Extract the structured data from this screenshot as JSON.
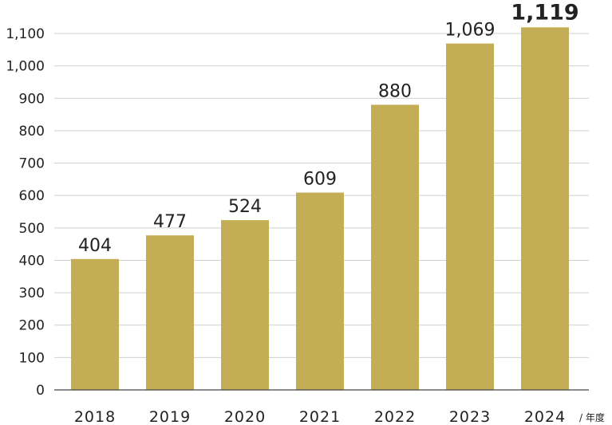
{
  "chart_data": {
    "type": "bar",
    "categories": [
      "2018",
      "2019",
      "2020",
      "2021",
      "2022",
      "2023",
      "2024"
    ],
    "values": [
      404,
      477,
      524,
      609,
      880,
      1069,
      1119
    ],
    "data_labels": [
      "404",
      "477",
      "524",
      "609",
      "880",
      "1,069",
      "1,119"
    ],
    "y_ticks": [
      "0",
      "100",
      "200",
      "300",
      "400",
      "500",
      "600",
      "700",
      "800",
      "900",
      "1,000",
      "1,100"
    ],
    "y_tick_values": [
      0,
      100,
      200,
      300,
      400,
      500,
      600,
      700,
      800,
      900,
      1000,
      1100
    ],
    "ylim": [
      0,
      1100
    ],
    "x_unit": "/ 年度",
    "grid": true,
    "bar_color": "#C3AE55",
    "gridline_color": "#CFCFCF"
  }
}
